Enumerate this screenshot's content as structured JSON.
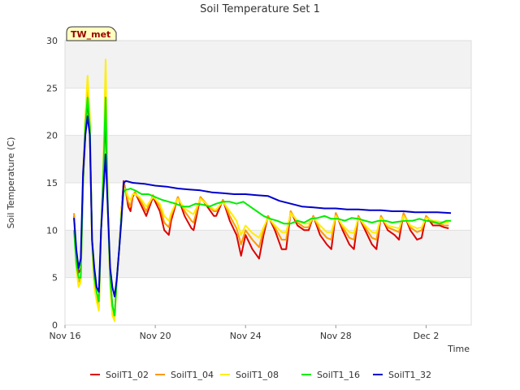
{
  "chart_data": {
    "type": "line",
    "title": "Soil Temperature Set 1",
    "site_label": "TW_met",
    "xlabel": "Time",
    "ylabel": "Soil Temperature (C)",
    "ylim": [
      0,
      30
    ],
    "yticks": [
      0,
      5,
      10,
      15,
      20,
      25,
      30
    ],
    "xlim": [
      "2023-11-16",
      "2023-12-04"
    ],
    "xticks": [
      {
        "label": "Nov 16",
        "day": 0
      },
      {
        "label": "Nov 20",
        "day": 4
      },
      {
        "label": "Nov 24",
        "day": 8
      },
      {
        "label": "Nov 28",
        "day": 12
      },
      {
        "label": "Dec 2",
        "day": 16
      }
    ],
    "grid": true,
    "legend_position": "bottom",
    "series": [
      {
        "name": "SoilT1_02",
        "color": "#dd0000",
        "x": [
          0.4,
          0.5,
          0.6,
          0.7,
          0.8,
          0.9,
          1.0,
          1.1,
          1.2,
          1.3,
          1.4,
          1.5,
          1.6,
          1.7,
          1.8,
          1.9,
          2.0,
          2.1,
          2.2,
          2.3,
          2.4,
          2.5,
          2.6,
          2.7,
          2.8,
          2.9,
          3.0,
          3.1,
          3.3,
          3.6,
          3.9,
          4.2,
          4.4,
          4.6,
          4.7,
          5.0,
          5.3,
          5.6,
          5.7,
          6.0,
          6.3,
          6.6,
          6.7,
          7.0,
          7.3,
          7.6,
          7.8,
          8.0,
          8.3,
          8.6,
          8.8,
          9.0,
          9.3,
          9.6,
          9.8,
          10.0,
          10.3,
          10.6,
          10.8,
          11.0,
          11.3,
          11.6,
          11.8,
          12.0,
          12.3,
          12.6,
          12.8,
          13.0,
          13.3,
          13.6,
          13.8,
          14.0,
          14.3,
          14.6,
          14.8,
          15.0,
          15.3,
          15.6,
          15.8,
          16.0,
          16.3,
          16.6,
          16.8,
          17.0
        ],
        "y": [
          11.5,
          7,
          5.5,
          6,
          15,
          20,
          24,
          20,
          9,
          5,
          3,
          2,
          10,
          16,
          22,
          12,
          5,
          2,
          1,
          5,
          8,
          12,
          15.2,
          14,
          12.5,
          12,
          13.5,
          14,
          13,
          11.5,
          13.5,
          12,
          10,
          9.5,
          11,
          13.5,
          11.5,
          10.2,
          10,
          13.5,
          12.5,
          11.5,
          11.5,
          13.2,
          11,
          9.5,
          7.3,
          9.5,
          8,
          7,
          9.5,
          11.5,
          10,
          8,
          8,
          12,
          10.5,
          10,
          10,
          11.5,
          9.5,
          8.5,
          8,
          11.8,
          10,
          8.5,
          8,
          11.5,
          10,
          8.5,
          8,
          11.5,
          10,
          9.5,
          9,
          11.8,
          10,
          9,
          9.2,
          11.5,
          10.5,
          10.5,
          10.3,
          10.2
        ]
      },
      {
        "name": "SoilT1_04",
        "color": "#ff9900",
        "x": [
          0.4,
          0.5,
          0.6,
          0.7,
          0.8,
          0.9,
          1.0,
          1.1,
          1.2,
          1.3,
          1.4,
          1.5,
          1.6,
          1.7,
          1.8,
          1.9,
          2.0,
          2.1,
          2.2,
          2.3,
          2.4,
          2.5,
          2.6,
          2.7,
          2.8,
          2.9,
          3.0,
          3.1,
          3.3,
          3.6,
          3.9,
          4.2,
          4.4,
          4.6,
          4.7,
          5.0,
          5.3,
          5.6,
          5.7,
          6.0,
          6.3,
          6.6,
          6.7,
          7.0,
          7.3,
          7.6,
          7.8,
          8.0,
          8.3,
          8.6,
          8.8,
          9.0,
          9.3,
          9.6,
          9.8,
          10.0,
          10.3,
          10.6,
          10.8,
          11.0,
          11.3,
          11.6,
          11.8,
          12.0,
          12.3,
          12.6,
          12.8,
          13.0,
          13.3,
          13.6,
          13.8,
          14.0,
          14.3,
          14.6,
          14.8,
          15.0,
          15.3,
          15.6,
          15.8,
          16.0,
          16.3,
          16.6,
          16.8,
          17.0
        ],
        "y": [
          11.8,
          6.5,
          4.5,
          5,
          15,
          21,
          25.5,
          21,
          8.5,
          4.5,
          2.8,
          1.8,
          10,
          16,
          25,
          12,
          4.5,
          1.5,
          0.8,
          5,
          8,
          12,
          15,
          14,
          13,
          12.5,
          13.7,
          14,
          13.3,
          12,
          13.7,
          12.5,
          10.8,
          10.3,
          11.5,
          13.5,
          12,
          11,
          10.8,
          13.5,
          12.7,
          12,
          12,
          13.2,
          11.5,
          10.2,
          8.5,
          10,
          9,
          8.2,
          10,
          11.5,
          10.3,
          9,
          9,
          12,
          10.8,
          10.3,
          10.3,
          11.5,
          10,
          9.2,
          9,
          11.8,
          10.3,
          9.2,
          9,
          11.5,
          10.3,
          9.2,
          9,
          11.5,
          10.3,
          10,
          9.8,
          11.8,
          10.3,
          9.8,
          10,
          11.5,
          10.8,
          10.7,
          10.5,
          10.5
        ]
      },
      {
        "name": "SoilT1_08",
        "color": "#ffee00",
        "x": [
          0.4,
          0.5,
          0.6,
          0.7,
          0.8,
          0.9,
          1.0,
          1.1,
          1.2,
          1.3,
          1.4,
          1.5,
          1.6,
          1.7,
          1.8,
          1.9,
          2.0,
          2.1,
          2.2,
          2.3,
          2.4,
          2.5,
          2.6,
          2.7,
          2.8,
          2.9,
          3.0,
          3.1,
          3.3,
          3.6,
          3.9,
          4.2,
          4.4,
          4.6,
          4.7,
          5.0,
          5.3,
          5.6,
          5.7,
          6.0,
          6.3,
          6.6,
          6.7,
          7.0,
          7.3,
          7.6,
          7.8,
          8.0,
          8.3,
          8.6,
          8.8,
          9.0,
          9.3,
          9.6,
          9.8,
          10.0,
          10.3,
          10.6,
          10.8,
          11.0,
          11.3,
          11.6,
          11.8,
          12.0,
          12.3,
          12.6,
          12.8,
          13.0,
          13.3,
          13.6,
          13.8,
          14.0,
          14.3,
          14.6,
          14.8,
          15.0,
          15.3,
          15.6,
          15.8,
          16.0,
          16.3,
          16.6,
          16.8,
          17.0
        ],
        "y": [
          11,
          6,
          4,
          4.5,
          16,
          22,
          26.3,
          22,
          8,
          4,
          2.5,
          1.5,
          10,
          17,
          28,
          12,
          4,
          1,
          0.4,
          5,
          8,
          12,
          14.5,
          14.2,
          13.5,
          13.2,
          13.8,
          13.8,
          13.5,
          12.5,
          13.5,
          12.8,
          11.5,
          11,
          11.8,
          13.3,
          12.3,
          11.8,
          11.7,
          13.3,
          12.7,
          12.2,
          12.2,
          13,
          12,
          11,
          9.5,
          10.5,
          9.7,
          9.2,
          10.3,
          11.3,
          10.5,
          9.8,
          9.8,
          11.8,
          11,
          10.7,
          10.7,
          11.3,
          10.5,
          9.8,
          9.8,
          11.5,
          10.5,
          9.8,
          9.7,
          11.3,
          10.5,
          9.8,
          9.7,
          11.3,
          10.5,
          10.3,
          10.2,
          11.5,
          10.5,
          10.2,
          10.3,
          11.3,
          11,
          10.9,
          10.8,
          10.8
        ]
      },
      {
        "name": "SoilT1_16",
        "color": "#00ee00",
        "x": [
          0.4,
          0.5,
          0.6,
          0.7,
          0.8,
          0.9,
          1.0,
          1.1,
          1.2,
          1.3,
          1.4,
          1.5,
          1.6,
          1.7,
          1.8,
          1.9,
          2.0,
          2.1,
          2.2,
          2.3,
          2.4,
          2.5,
          2.6,
          2.7,
          2.8,
          2.9,
          3.0,
          3.1,
          3.4,
          3.7,
          4.0,
          4.3,
          4.6,
          4.9,
          5.2,
          5.5,
          5.8,
          6.1,
          6.4,
          6.7,
          7.0,
          7.3,
          7.6,
          7.9,
          8.2,
          8.5,
          8.8,
          9.1,
          9.4,
          9.7,
          10.0,
          10.3,
          10.6,
          10.9,
          11.2,
          11.5,
          11.8,
          12.1,
          12.4,
          12.7,
          13.0,
          13.3,
          13.6,
          13.9,
          14.2,
          14.5,
          14.8,
          15.1,
          15.4,
          15.7,
          16.0,
          16.3,
          16.6,
          16.9,
          17.1
        ],
        "y": [
          10,
          6.5,
          5,
          5,
          15,
          21,
          24,
          21,
          9,
          5,
          3.5,
          2.5,
          10,
          16,
          24,
          12,
          5,
          2,
          1,
          5,
          8,
          11.5,
          14,
          14.3,
          14.3,
          14.4,
          14.3,
          14.2,
          13.8,
          13.8,
          13.5,
          13.2,
          13,
          12.8,
          12.5,
          12.5,
          12.8,
          12.7,
          12.5,
          12.8,
          13,
          13,
          12.8,
          13,
          12.5,
          12,
          11.5,
          11.2,
          11,
          10.7,
          10.7,
          11,
          10.8,
          11.2,
          11.3,
          11.5,
          11.2,
          11.2,
          11,
          11.3,
          11.2,
          11,
          10.8,
          11,
          11,
          10.8,
          10.9,
          11,
          11,
          11.2,
          11,
          10.9,
          10.7,
          11,
          11
        ]
      },
      {
        "name": "SoilT1_32",
        "color": "#0000cc",
        "x": [
          0.4,
          0.5,
          0.6,
          0.7,
          0.8,
          0.9,
          1.0,
          1.1,
          1.2,
          1.3,
          1.4,
          1.5,
          1.6,
          1.7,
          1.8,
          1.9,
          2.0,
          2.1,
          2.2,
          2.3,
          2.4,
          2.5,
          2.6,
          2.7,
          3.0,
          3.5,
          4.0,
          4.5,
          5.0,
          5.5,
          6.0,
          6.5,
          7.0,
          7.5,
          8.0,
          8.5,
          9.0,
          9.5,
          10.0,
          10.5,
          11.0,
          11.5,
          12.0,
          12.5,
          13.0,
          13.5,
          14.0,
          14.5,
          15.0,
          15.5,
          16.0,
          16.5,
          17.1
        ],
        "y": [
          11.3,
          8,
          6,
          7,
          16,
          20,
          22,
          20,
          9,
          6,
          4,
          3.5,
          10,
          14,
          18,
          12,
          6,
          4,
          3,
          5,
          8,
          11,
          15,
          15.2,
          15,
          14.9,
          14.7,
          14.6,
          14.4,
          14.3,
          14.2,
          14,
          13.9,
          13.8,
          13.8,
          13.7,
          13.6,
          13.1,
          12.8,
          12.5,
          12.4,
          12.3,
          12.3,
          12.2,
          12.2,
          12.1,
          12.1,
          12,
          12,
          11.9,
          11.9,
          11.9,
          11.8
        ]
      }
    ]
  }
}
